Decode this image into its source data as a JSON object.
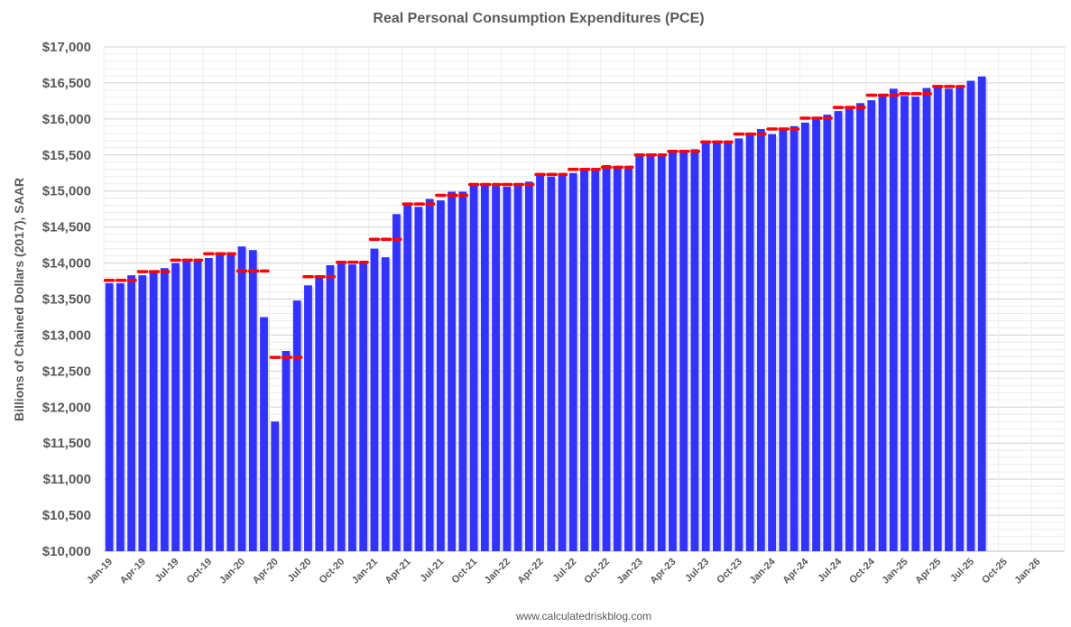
{
  "chart_data": {
    "type": "bar",
    "title": "Real Personal Consumption Expenditures (PCE)",
    "ylabel": "Billions of Chained Dollars (2017), SAAR",
    "xlabel": "",
    "source": "www.calculatedriskblog.com",
    "ylim": [
      10000,
      17000
    ],
    "y_ticks": [
      10000,
      10500,
      11000,
      11500,
      12000,
      12500,
      13000,
      13500,
      14000,
      14500,
      15000,
      15500,
      16000,
      16500,
      17000
    ],
    "y_tick_labels": [
      "$10,000",
      "$10,500",
      "$11,000",
      "$11,500",
      "$12,000",
      "$12,500",
      "$13,000",
      "$13,500",
      "$14,000",
      "$14,500",
      "$15,000",
      "$15,500",
      "$16,000",
      "$16,500",
      "$17,000"
    ],
    "x_tick_labels": [
      "Jan-19",
      "Apr-19",
      "Jul-19",
      "Oct-19",
      "Jan-20",
      "Apr-20",
      "Jul-20",
      "Oct-20",
      "Jan-21",
      "Apr-21",
      "Jul-21",
      "Oct-21",
      "Jan-22",
      "Apr-22",
      "Jul-22",
      "Oct-22",
      "Jan-23",
      "Apr-23",
      "Jul-23",
      "Oct-23",
      "Jan-24",
      "Apr-24",
      "Jul-24",
      "Oct-24",
      "Jan-25",
      "Apr-25",
      "Jul-25",
      "Oct-25",
      "Jan-26"
    ],
    "grid": true,
    "bar_color": "#3333ff",
    "quarterly_color": "#ff0000",
    "series": [
      {
        "type": "bar",
        "values": [
          13720,
          13720,
          13830,
          13830,
          13880,
          13930,
          14000,
          14030,
          14040,
          14070,
          14130,
          14150,
          14230,
          14180,
          13250,
          11800,
          12780,
          13480,
          13690,
          13790,
          13970,
          14010,
          13980,
          14000,
          14200,
          14080,
          14680,
          14800,
          14780,
          14890,
          14870,
          14990,
          14990,
          15090,
          15100,
          15070,
          15060,
          15080,
          15130,
          15230,
          15200,
          15230,
          15250,
          15300,
          15320,
          15360,
          15330,
          15320,
          15500,
          15480,
          15500,
          15560,
          15540,
          15580,
          15680,
          15680,
          15690,
          15730,
          15800,
          15860,
          15790,
          15850,
          15900,
          15950,
          16000,
          16060,
          16110,
          16140,
          16220,
          16260,
          16320,
          16420,
          16320,
          16310,
          16430,
          16470,
          16420,
          16450,
          16530,
          16590
        ]
      },
      {
        "type": "quarterly-dash",
        "quarter_centers": [
          1,
          4,
          7,
          10,
          13,
          16,
          19,
          22,
          25,
          28,
          31,
          34,
          37,
          40,
          43,
          46,
          49,
          52,
          55,
          58,
          61,
          64,
          67,
          70,
          73,
          76
        ],
        "values": [
          13760,
          13880,
          14040,
          14130,
          13890,
          12690,
          13810,
          14010,
          14330,
          14820,
          14940,
          15090,
          15090,
          15230,
          15300,
          15330,
          15500,
          15550,
          15680,
          15790,
          15860,
          16010,
          16160,
          16330,
          16350,
          16450
        ]
      }
    ]
  }
}
